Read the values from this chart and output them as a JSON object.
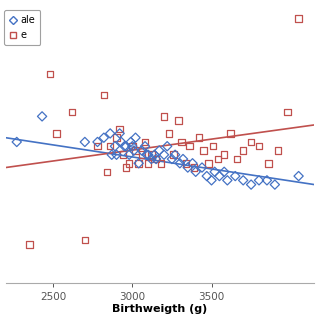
{
  "xlabel": "Birthweigth (g)",
  "xlim": [
    2200,
    4150
  ],
  "ylim": [
    100,
    750
  ],
  "legend_labels": [
    "ale",
    "e"
  ],
  "bg_color": "#ffffff",
  "male_color": "#4472C4",
  "female_color": "#C0504D",
  "xticks": [
    2500,
    3000,
    3500
  ],
  "male_x": [
    2270,
    2430,
    2700,
    2780,
    2820,
    2860,
    2870,
    2890,
    2900,
    2920,
    2930,
    2950,
    2960,
    2980,
    2990,
    3000,
    3010,
    3020,
    3040,
    3060,
    3080,
    3090,
    3100,
    3120,
    3140,
    3150,
    3170,
    3200,
    3220,
    3250,
    3270,
    3300,
    3320,
    3350,
    3380,
    3400,
    3440,
    3470,
    3500,
    3520,
    3550,
    3580,
    3600,
    3650,
    3700,
    3750,
    3800,
    3850,
    3900,
    4050
  ],
  "male_y": [
    430,
    490,
    430,
    430,
    440,
    450,
    400,
    420,
    400,
    450,
    430,
    420,
    420,
    400,
    430,
    420,
    410,
    440,
    380,
    410,
    420,
    400,
    400,
    390,
    400,
    390,
    410,
    400,
    420,
    390,
    400,
    380,
    390,
    370,
    380,
    360,
    370,
    350,
    340,
    360,
    350,
    360,
    340,
    350,
    340,
    330,
    340,
    340,
    330,
    350
  ],
  "female_x": [
    2350,
    2480,
    2520,
    2620,
    2700,
    2780,
    2820,
    2840,
    2860,
    2900,
    2920,
    2940,
    2960,
    2980,
    3000,
    3020,
    3040,
    3060,
    3080,
    3100,
    3120,
    3150,
    3180,
    3200,
    3230,
    3260,
    3290,
    3310,
    3340,
    3360,
    3390,
    3420,
    3450,
    3480,
    3510,
    3540,
    3580,
    3620,
    3660,
    3700,
    3750,
    3800,
    3860,
    3920,
    3980,
    4050
  ],
  "female_y": [
    190,
    590,
    450,
    500,
    200,
    420,
    540,
    360,
    420,
    440,
    460,
    400,
    370,
    380,
    420,
    410,
    380,
    400,
    430,
    380,
    400,
    390,
    380,
    490,
    450,
    400,
    480,
    430,
    380,
    420,
    370,
    440,
    410,
    380,
    420,
    390,
    400,
    450,
    390,
    410,
    430,
    420,
    380,
    410,
    500,
    720
  ],
  "male_trend_x": [
    2200,
    4150
  ],
  "male_trend_y": [
    440,
    330
  ],
  "female_trend_x": [
    2200,
    4150
  ],
  "female_trend_y": [
    370,
    470
  ],
  "marker_size": 22,
  "trend_linewidth": 1.2,
  "xlabel_fontsize": 8,
  "tick_fontsize": 7.5,
  "legend_fontsize": 7
}
